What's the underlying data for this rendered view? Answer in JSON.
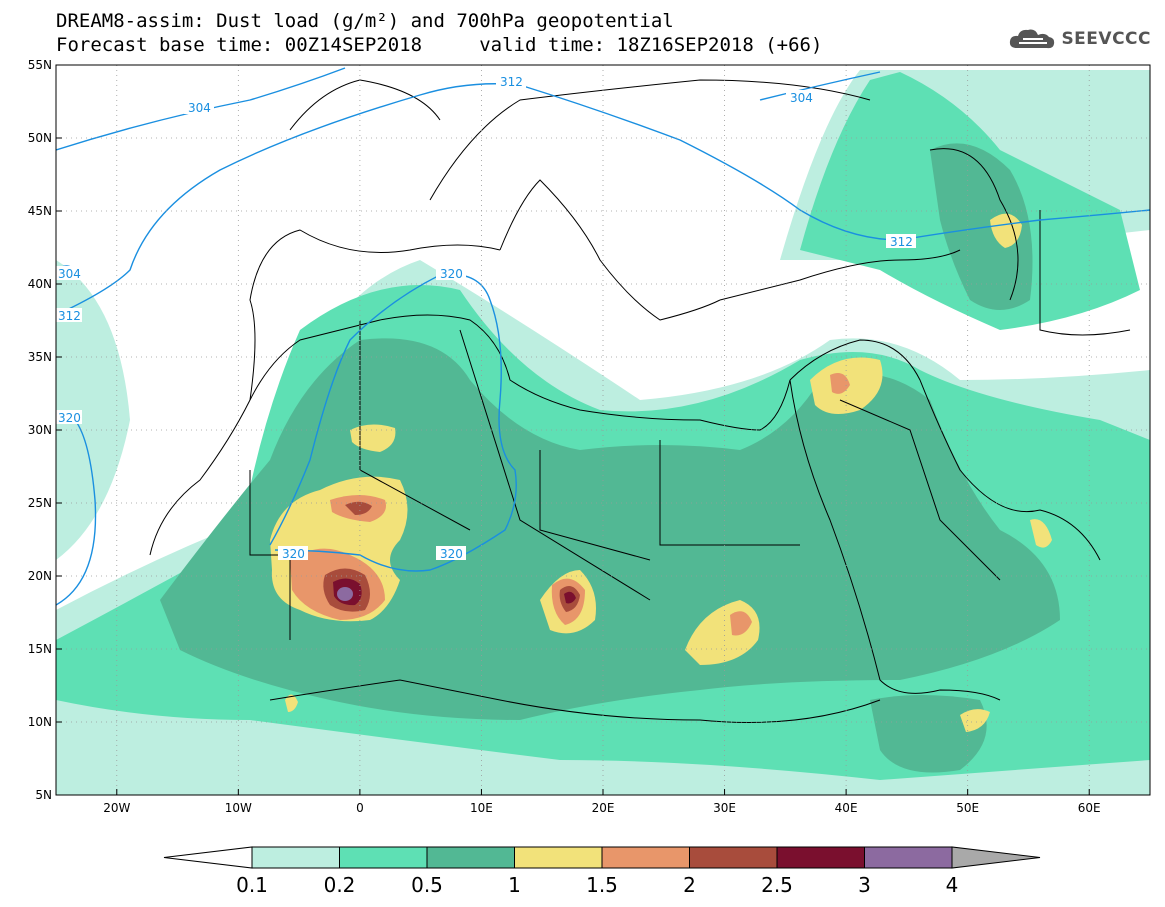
{
  "header": {
    "title_line1": "DREAM8-assim: Dust load (g/m²) and 700hPa geopotential",
    "title_line2": "Forecast base time: 00Z14SEP2018     valid time: 18Z16SEP2018 (+66)",
    "logo_text": "SEEVCCC"
  },
  "axes": {
    "lat_ticks": [
      "55N",
      "50N",
      "45N",
      "40N",
      "35N",
      "30N",
      "25N",
      "20N",
      "15N",
      "10N",
      "5N"
    ],
    "lat_values": [
      55,
      50,
      45,
      40,
      35,
      30,
      25,
      20,
      15,
      10,
      5
    ],
    "lon_ticks": [
      "20W",
      "10W",
      "0",
      "10E",
      "20E",
      "30E",
      "40E",
      "50E",
      "60E"
    ],
    "lon_values": [
      -20,
      -10,
      0,
      10,
      20,
      30,
      40,
      50,
      60
    ],
    "lon_range": [
      -25,
      65
    ],
    "lat_range": [
      5,
      55
    ]
  },
  "contour_labels": [
    "304",
    "312",
    "304",
    "312",
    "304",
    "312",
    "320",
    "320",
    "320",
    "320"
  ],
  "colorbar": {
    "labels": [
      "0.1",
      "0.2",
      "0.5",
      "1",
      "1.5",
      "2",
      "2.5",
      "3",
      "4"
    ],
    "colors": [
      "#ffffff",
      "#bdeee0",
      "#5ee0b4",
      "#52b894",
      "#f2e27a",
      "#e8966a",
      "#a84c3c",
      "#7a0f2e",
      "#8c6aa0",
      "#a9a9a9"
    ]
  },
  "colors": {
    "contour": "#1a8fe0",
    "border": "#000000"
  }
}
